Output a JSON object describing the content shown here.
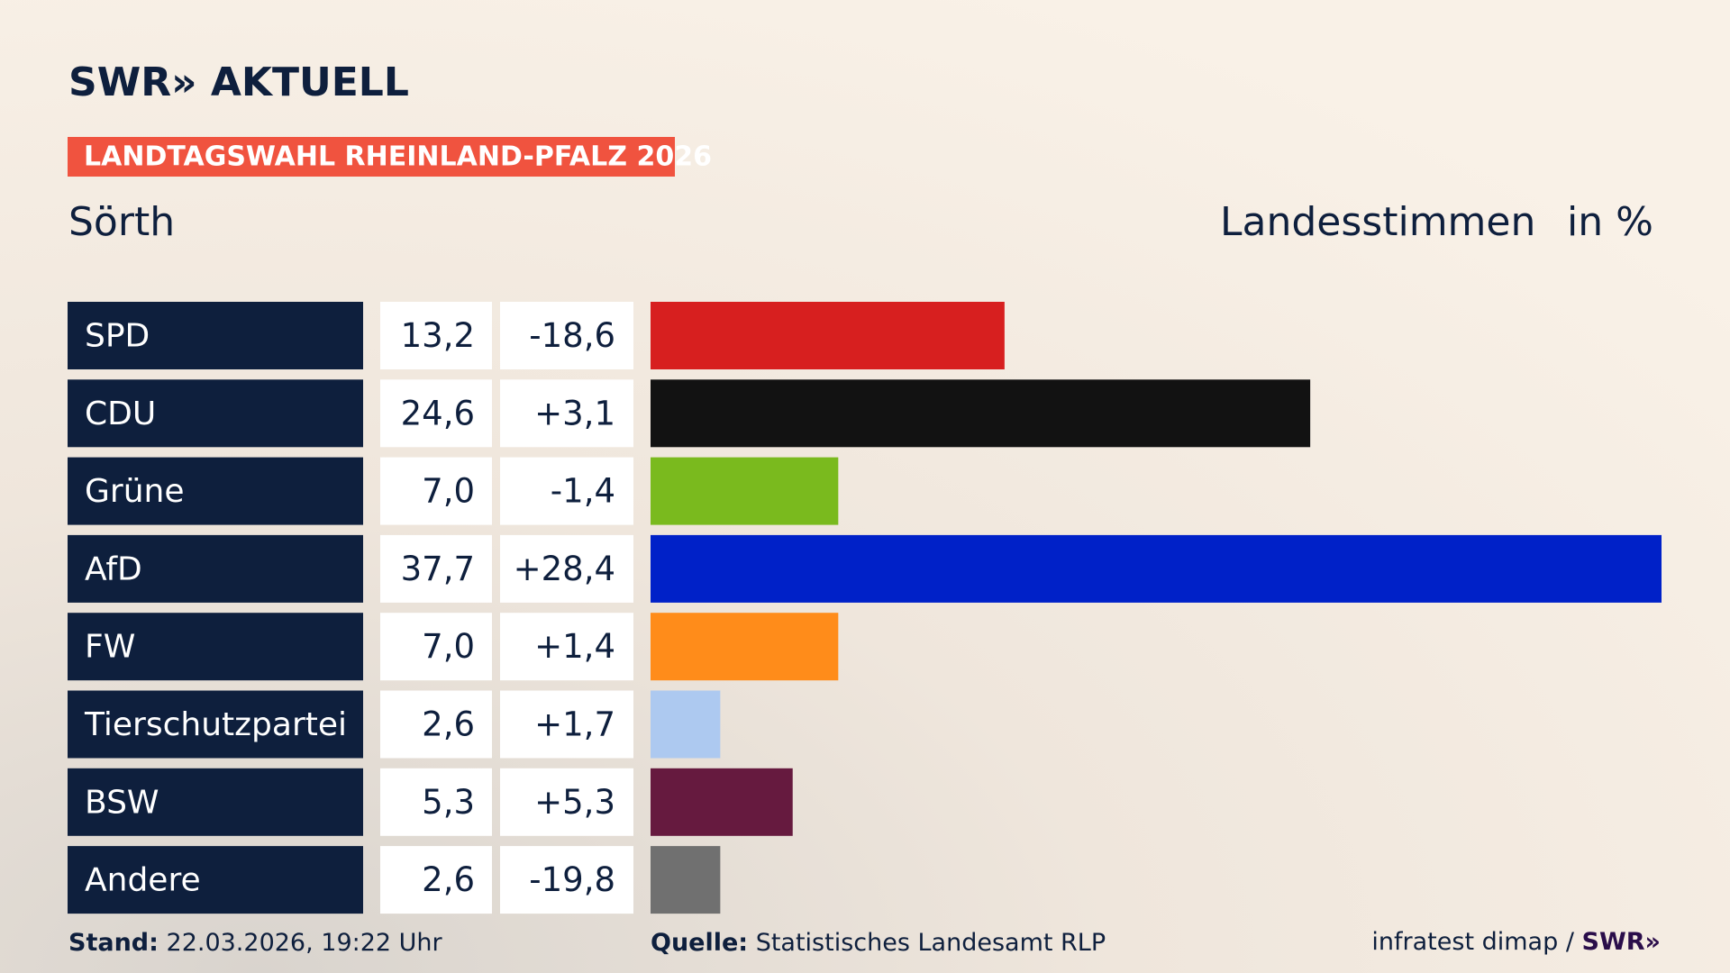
{
  "header": {
    "logo": "SWR» AKTUELL",
    "banner": "LANDTAGSWAHL RHEINLAND-PFALZ 2026",
    "region": "Sörth",
    "measure": "Landesstimmen",
    "unit": "in %"
  },
  "chart_data": {
    "type": "bar",
    "orientation": "horizontal",
    "categories": [
      "SPD",
      "CDU",
      "Grüne",
      "AfD",
      "FW",
      "Tierschutzpartei",
      "BSW",
      "Andere"
    ],
    "values": [
      13.2,
      24.6,
      7.0,
      37.7,
      7.0,
      2.6,
      5.3,
      2.6
    ],
    "value_labels": [
      "13,2",
      "24,6",
      "7,0",
      "37,7",
      "7,0",
      "2,6",
      "5,3",
      "2,6"
    ],
    "changes": [
      -18.6,
      3.1,
      -1.4,
      28.4,
      1.4,
      1.7,
      5.3,
      -19.8
    ],
    "change_labels": [
      "-18,6",
      "+3,1",
      "-1,4",
      "+28,4",
      "+1,4",
      "+1,7",
      "+5,3",
      "-19,8"
    ],
    "colors": [
      "#d71f1f",
      "#121212",
      "#7aba1e",
      "#0021c8",
      "#ff8c1a",
      "#adc9f0",
      "#661a3f",
      "#707070"
    ]
  },
  "footer": {
    "stand_label": "Stand:",
    "stand": "22.03.2026, 19:22 Uhr",
    "source_label": "Quelle:",
    "source": "Statistisches Landesamt RLP",
    "credit": "infratest dimap /",
    "credit_logo": "SWR»"
  }
}
